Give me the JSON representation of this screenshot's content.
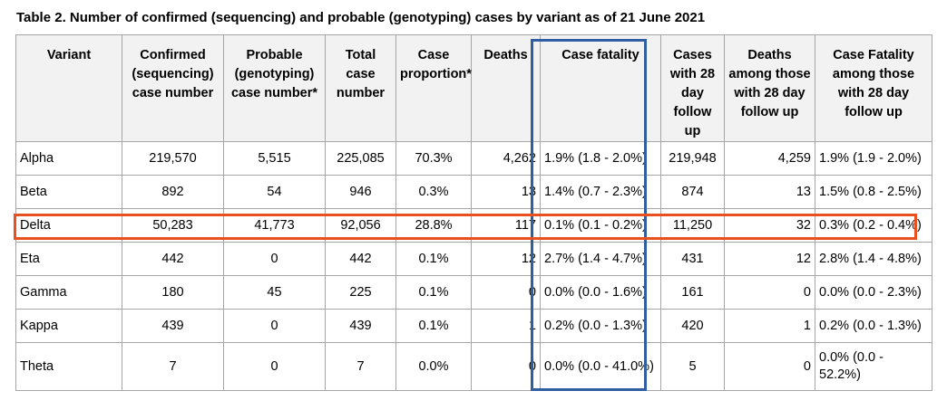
{
  "caption": "Table 2. Number of confirmed (sequencing) and probable (genotyping) cases by variant as of 21 June 2021",
  "headers": [
    "Variant",
    "Confirmed (sequencing) case number",
    "Probable (genotyping) case number*",
    "Total case number",
    "Case proportion*",
    "Deaths",
    "Case fatality",
    "Cases with 28 day follow up",
    "Deaths among those with 28 day follow up",
    "Case Fatality among those with 28 day follow up"
  ],
  "rows": [
    [
      "Alpha",
      "219,570",
      "5,515",
      "225,085",
      "70.3%",
      "4,262",
      "1.9% (1.8 - 2.0%)",
      "219,948",
      "4,259",
      "1.9% (1.9 - 2.0%)"
    ],
    [
      "Beta",
      "892",
      "54",
      "946",
      "0.3%",
      "13",
      "1.4% (0.7 - 2.3%)",
      "874",
      "13",
      "1.5% (0.8 - 2.5%)"
    ],
    [
      "Delta",
      "50,283",
      "41,773",
      "92,056",
      "28.8%",
      "117",
      "0.1% (0.1 - 0.2%)",
      "11,250",
      "32",
      "0.3% (0.2 - 0.4%)"
    ],
    [
      "Eta",
      "442",
      "0",
      "442",
      "0.1%",
      "12",
      "2.7% (1.4 - 4.7%)",
      "431",
      "12",
      "2.8% (1.4 - 4.8%)"
    ],
    [
      "Gamma",
      "180",
      "45",
      "225",
      "0.1%",
      "0",
      "0.0% (0.0 - 1.6%)",
      "161",
      "0",
      "0.0% (0.0 - 2.3%)"
    ],
    [
      "Kappa",
      "439",
      "0",
      "439",
      "0.1%",
      "1",
      "0.2% (0.0 - 1.3%)",
      "420",
      "1",
      "0.2% (0.0 - 1.3%)"
    ],
    [
      "Theta",
      "7",
      "0",
      "7",
      "0.0%",
      "0",
      "0.0% (0.0 - 41.0%)",
      "5",
      "0",
      "0.0% (0.0 - 52.2%)"
    ]
  ],
  "highlights": {
    "column_box_color": "#2f5fa0",
    "row_box_color": "#e8501f"
  }
}
